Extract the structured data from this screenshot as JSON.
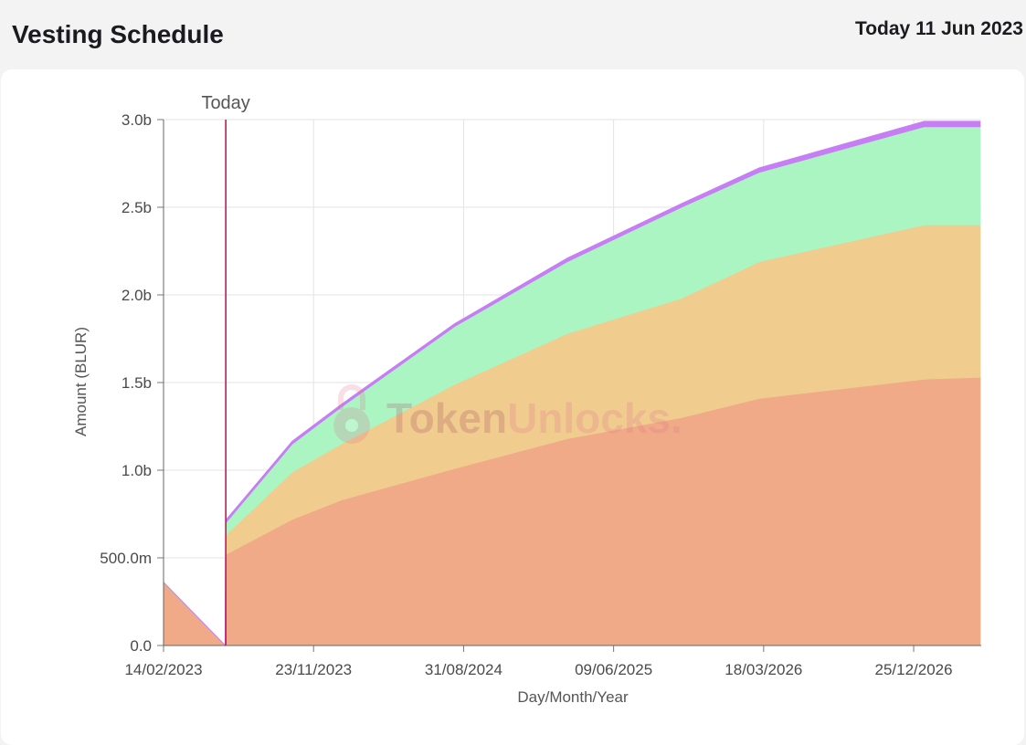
{
  "header": {
    "title": "Vesting Schedule",
    "today_label": "Today 11 Jun 2023"
  },
  "watermark": {
    "text_part1": "Token",
    "text_part2": "Unlocks",
    "dot": "."
  },
  "chart_data": {
    "type": "area",
    "stacked": true,
    "xlabel": "Day/Month/Year",
    "ylabel": "Amount (BLUR)",
    "ylim": [
      0,
      3000000000
    ],
    "y_ticks": [
      0,
      500000000,
      1000000000,
      1500000000,
      2000000000,
      2500000000,
      3000000000
    ],
    "y_tick_labels": [
      "0.0",
      "500.0m",
      "1.0b",
      "1.5b",
      "2.0b",
      "2.5b",
      "3.0b"
    ],
    "xlim": [
      "2023-02-14",
      "2027-05-01"
    ],
    "x_ticks": [
      "2023-02-14",
      "2023-11-23",
      "2024-08-31",
      "2025-06-09",
      "2026-03-18",
      "2026-12-25"
    ],
    "x_tick_labels": [
      "14/02/2023",
      "23/11/2023",
      "31/08/2024",
      "09/06/2025",
      "18/03/2026",
      "25/12/2026"
    ],
    "grid": true,
    "today_marker": {
      "date": "2023-06-11",
      "label": "Today",
      "color": "#c2185b"
    },
    "series": [
      {
        "color": "#f0aa87",
        "points": [
          [
            "2023-02-14",
            360000000
          ],
          [
            "2023-06-11",
            520000000
          ],
          [
            "2023-10-14",
            720000000
          ],
          [
            "2024-01-14",
            830000000
          ],
          [
            "2024-08-14",
            1010000000
          ],
          [
            "2025-03-14",
            1180000000
          ],
          [
            "2025-10-14",
            1300000000
          ],
          [
            "2026-03-10",
            1410000000
          ],
          [
            "2027-01-14",
            1520000000
          ],
          [
            "2027-04-29",
            1530000000
          ]
        ]
      },
      {
        "color": "#f0cc8e",
        "points": [
          [
            "2023-02-14",
            0
          ],
          [
            "2023-06-10",
            0
          ],
          [
            "2023-06-11",
            110000000
          ],
          [
            "2023-10-14",
            270000000
          ],
          [
            "2024-01-14",
            320000000
          ],
          [
            "2024-08-14",
            480000000
          ],
          [
            "2025-03-14",
            600000000
          ],
          [
            "2025-10-14",
            680000000
          ],
          [
            "2026-03-10",
            780000000
          ],
          [
            "2027-01-14",
            880000000
          ],
          [
            "2027-04-29",
            870000000
          ]
        ]
      },
      {
        "color": "#abf5c3",
        "points": [
          [
            "2023-02-14",
            0
          ],
          [
            "2023-06-10",
            0
          ],
          [
            "2023-06-11",
            70000000
          ],
          [
            "2023-10-14",
            160000000
          ],
          [
            "2024-01-14",
            210000000
          ],
          [
            "2024-08-14",
            330000000
          ],
          [
            "2025-03-14",
            410000000
          ],
          [
            "2025-10-14",
            520000000
          ],
          [
            "2026-03-10",
            510000000
          ],
          [
            "2027-01-14",
            560000000
          ],
          [
            "2027-04-29",
            560000000
          ]
        ]
      },
      {
        "color": "#c77df3",
        "points": [
          [
            "2023-02-14",
            0
          ],
          [
            "2023-06-10",
            0
          ],
          [
            "2023-06-11",
            15000000
          ],
          [
            "2023-10-14",
            15000000
          ],
          [
            "2024-01-14",
            15000000
          ],
          [
            "2024-08-14",
            15000000
          ],
          [
            "2025-03-14",
            20000000
          ],
          [
            "2025-10-14",
            20000000
          ],
          [
            "2026-03-10",
            25000000
          ],
          [
            "2027-01-14",
            30000000
          ],
          [
            "2027-04-29",
            30000000
          ]
        ]
      }
    ]
  }
}
